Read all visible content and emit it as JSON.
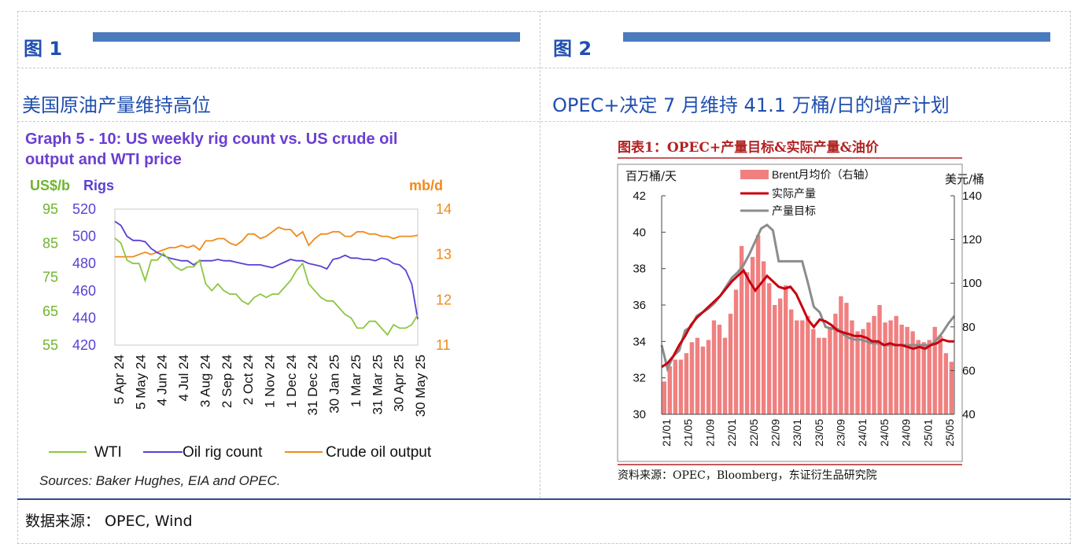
{
  "fig1": {
    "label": "图 1",
    "title": "美国原油产量维持高位"
  },
  "fig2": {
    "label": "图 2",
    "title": "OPEC+决定 7 月维持 41.1 万桶/日的增产计划"
  },
  "source": "数据来源：  OPEC, Wind",
  "chart_data": [
    {
      "type": "line",
      "title": "Graph 5 - 10: US weekly rig count vs. US crude oil output and WTI price",
      "title_lines": [
        "Graph 5 - 10: US weekly rig count vs. US crude oil",
        "output and WTI price"
      ],
      "left_axis1_label": "US$/b",
      "left_axis2_label": "Rigs",
      "right_axis_label": "mb/d",
      "wti_ticks": [
        "95",
        "85",
        "75",
        "65",
        "55"
      ],
      "rig_ticks": [
        "520",
        "500",
        "480",
        "460",
        "440",
        "420"
      ],
      "output_ticks": [
        "14",
        "13",
        "12",
        "11"
      ],
      "ylim_wti": [
        55,
        95
      ],
      "ylim_rigs": [
        420,
        520
      ],
      "ylim_output": [
        11,
        14
      ],
      "x_tick_labels": [
        "5 Apr 24",
        "5 May 24",
        "4 Jun 24",
        "4 Jul 24",
        "3 Aug 24",
        "2 Sep 24",
        "2 Oct 24",
        "1 Nov 24",
        "1 Dec 24",
        "31 Dec 24",
        "30 Jan 25",
        "1 Mar 25",
        "31 Mar 25",
        "30 Apr 25",
        "30 May 25"
      ],
      "series": [
        {
          "name": "WTI",
          "color": "#8cc63f",
          "values": [
            86.5,
            85,
            80,
            79,
            79,
            74,
            80,
            80,
            82,
            80,
            78,
            77,
            78,
            78,
            80,
            73,
            71,
            73,
            71,
            70,
            70,
            68,
            67,
            69,
            70,
            69,
            70,
            70,
            72,
            74,
            77,
            79,
            73,
            71,
            69,
            68,
            68,
            66,
            64,
            63,
            60,
            60,
            62,
            62,
            60,
            58,
            61,
            60,
            60,
            61,
            64
          ]
        },
        {
          "name": "Oil rig count",
          "color": "#5b3fd4",
          "values": [
            511,
            508,
            500,
            497,
            497,
            496,
            491,
            488,
            486,
            484,
            483,
            482,
            482,
            479,
            482,
            482,
            482,
            483,
            482,
            482,
            481,
            480,
            479,
            479,
            479,
            478,
            477,
            479,
            481,
            483,
            482,
            482,
            480,
            479,
            478,
            476,
            483,
            484,
            486,
            484,
            484,
            483,
            483,
            482,
            484,
            483,
            480,
            479,
            475,
            465,
            439
          ]
        },
        {
          "name": "Crude oil output",
          "color": "#f08a1c",
          "values": [
            12.95,
            12.95,
            12.95,
            12.95,
            13.0,
            13.05,
            13.0,
            13.05,
            13.1,
            13.15,
            13.15,
            13.2,
            13.15,
            13.2,
            13.1,
            13.3,
            13.3,
            13.35,
            13.35,
            13.25,
            13.2,
            13.3,
            13.45,
            13.45,
            13.35,
            13.4,
            13.5,
            13.6,
            13.55,
            13.55,
            13.4,
            13.5,
            13.2,
            13.35,
            13.45,
            13.45,
            13.5,
            13.5,
            13.4,
            13.4,
            13.5,
            13.5,
            13.45,
            13.45,
            13.4,
            13.4,
            13.35,
            13.4,
            13.4,
            13.4,
            13.42
          ]
        }
      ],
      "legend": [
        "WTI",
        "Oil rig count",
        "Crude oil output"
      ],
      "note": "Sources: Baker Hughes, EIA and OPEC."
    },
    {
      "type": "bar+line",
      "title": "图表1：OPEC+产量目标&实际产量&油价",
      "ylabel_left": "百万桶/天",
      "ylabel_right": "美元/桶",
      "left_ticks": [
        "42",
        "40",
        "38",
        "36",
        "34",
        "32",
        "30"
      ],
      "right_ticks": [
        "140",
        "120",
        "100",
        "80",
        "60",
        "40"
      ],
      "ylim_left": [
        30,
        42
      ],
      "ylim_right": [
        40,
        140
      ],
      "x_tick_labels": [
        "21/01",
        "21/05",
        "21/09",
        "22/01",
        "22/05",
        "22/09",
        "23/01",
        "23/05",
        "23/09",
        "24/01",
        "24/05",
        "24/09",
        "25/01",
        "25/05"
      ],
      "series": [
        {
          "name": "Brent月均价（右轴）",
          "color": "#f08080",
          "kind": "bar",
          "values": [
            55,
            62,
            65,
            65,
            68,
            73,
            75,
            71,
            74,
            83,
            81,
            75,
            86,
            97,
            117,
            105,
            112,
            122,
            110,
            100,
            90,
            93,
            99,
            88,
            83,
            83,
            85,
            79,
            75,
            75,
            80,
            86,
            94,
            91,
            83,
            78,
            79,
            82,
            85,
            90,
            82,
            83,
            85,
            81,
            80,
            78,
            74,
            73,
            74,
            80,
            76,
            68,
            64
          ]
        },
        {
          "name": "实际产量",
          "color": "#c8000f",
          "kind": "line",
          "values": [
            32.6,
            32.8,
            33.2,
            33.8,
            34.3,
            34.9,
            35.3,
            35.6,
            35.9,
            36.2,
            36.5,
            36.9,
            37.3,
            37.6,
            37.9,
            37.3,
            36.8,
            37.2,
            37.6,
            37.3,
            37.0,
            36.9,
            37.0,
            36.6,
            35.9,
            35.2,
            34.8,
            35.2,
            35.1,
            34.9,
            34.6,
            34.5,
            34.4,
            34.3,
            34.3,
            34.2,
            34.0,
            34.0,
            33.8,
            33.9,
            33.8,
            33.8,
            33.7,
            33.6,
            33.7,
            33.6,
            33.8,
            33.9,
            34.1,
            34.0,
            34.0
          ]
        },
        {
          "name": "产量目标",
          "color": "#8c8c8c",
          "kind": "line",
          "values": [
            33.8,
            32.5,
            33.2,
            33.5,
            34.6,
            34.8,
            35.4,
            35.6,
            35.8,
            36.1,
            36.5,
            37.0,
            37.5,
            37.8,
            38.2,
            38.8,
            39.5,
            40.2,
            40.4,
            40.1,
            38.4,
            38.4,
            38.4,
            38.4,
            38.4,
            37.2,
            35.9,
            35.6,
            34.8,
            34.7,
            34.7,
            34.4,
            34.2,
            34.1,
            34.1,
            34.0,
            33.9,
            33.9,
            33.8,
            33.8,
            33.8,
            33.8,
            33.8,
            33.8,
            33.8,
            33.8,
            33.8,
            34.1,
            34.5,
            35.0,
            35.4
          ]
        }
      ],
      "legend": [
        "Brent月均价（右轴）",
        "实际产量",
        "产量目标"
      ],
      "note": "资料来源：OPEC，Bloomberg，东证衍生品研究院"
    }
  ]
}
